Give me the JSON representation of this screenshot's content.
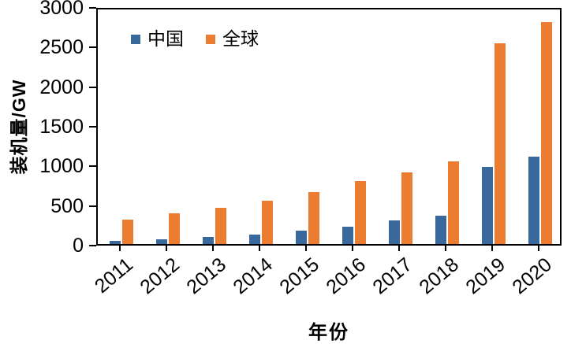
{
  "chart_data": {
    "type": "bar",
    "title": "",
    "xlabel": "年份",
    "ylabel": "装机量/GW",
    "categories": [
      "2011",
      "2012",
      "2013",
      "2014",
      "2015",
      "2016",
      "2017",
      "2018",
      "2019",
      "2020"
    ],
    "series": [
      {
        "name": "中国",
        "key": "china",
        "color": "#38689c",
        "values": [
          40,
          60,
          90,
          120,
          170,
          220,
          300,
          360,
          970,
          1100
        ]
      },
      {
        "name": "全球",
        "key": "global",
        "color": "#ec7c30",
        "values": [
          310,
          390,
          460,
          545,
          660,
          790,
          900,
          1040,
          2530,
          2800
        ]
      }
    ],
    "ylim": [
      0,
      3000
    ],
    "yticks": [
      0,
      500,
      1000,
      1500,
      2000,
      2500,
      3000
    ],
    "grid": false,
    "legend_position": "top-left-inside"
  }
}
